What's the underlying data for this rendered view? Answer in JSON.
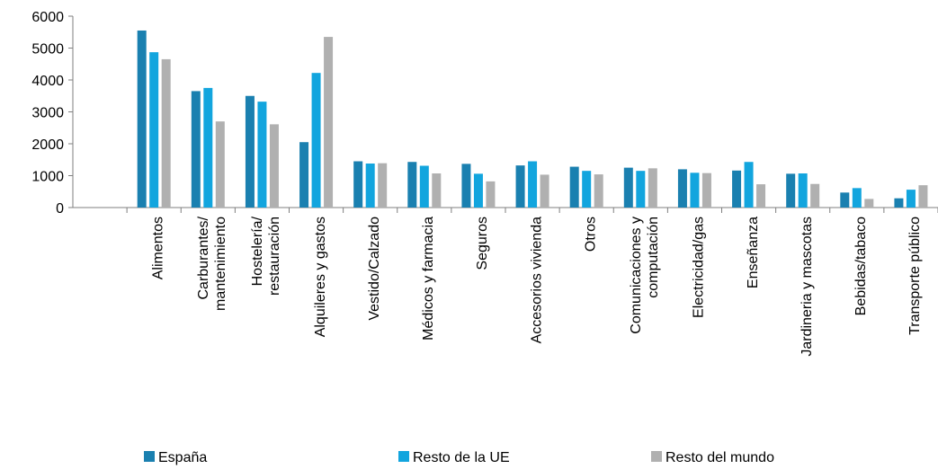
{
  "chart_data": {
    "type": "bar",
    "categories": [
      null,
      "Alimentos",
      "Carburantes/\nmantenimiento",
      "Hostelería/\nrestauración",
      "Alquileres y gastos",
      "Vestido/Calzado",
      "Médicos y farmacia",
      "Seguros",
      "Accesorios vivienda",
      "Otros",
      "Comunicaciones y\ncomputación",
      "Electricidad/gas",
      "Enseñanza",
      "Jardineria y mascotas",
      "Bebidas/tabaco",
      "Transporte público"
    ],
    "series": [
      {
        "name": "España",
        "color": "#1a80b0",
        "values": [
          null,
          5550,
          3650,
          3500,
          2050,
          1450,
          1430,
          1370,
          1320,
          1280,
          1250,
          1200,
          1160,
          1060,
          470,
          290
        ]
      },
      {
        "name": "Resto de la UE",
        "color": "#12a5de",
        "values": [
          null,
          4870,
          3750,
          3320,
          4220,
          1380,
          1310,
          1060,
          1450,
          1150,
          1150,
          1090,
          1430,
          1070,
          610,
          560
        ]
      },
      {
        "name": "Resto del mundo",
        "color": "#b0b0b0",
        "values": [
          null,
          4650,
          2700,
          2610,
          5350,
          1390,
          1070,
          820,
          1030,
          1040,
          1230,
          1080,
          730,
          740,
          270,
          700
        ]
      }
    ],
    "ylim": [
      0,
      6000
    ],
    "yticks": [
      0,
      1000,
      2000,
      3000,
      4000,
      5000,
      6000
    ],
    "grid": false,
    "legend": "bottom"
  }
}
